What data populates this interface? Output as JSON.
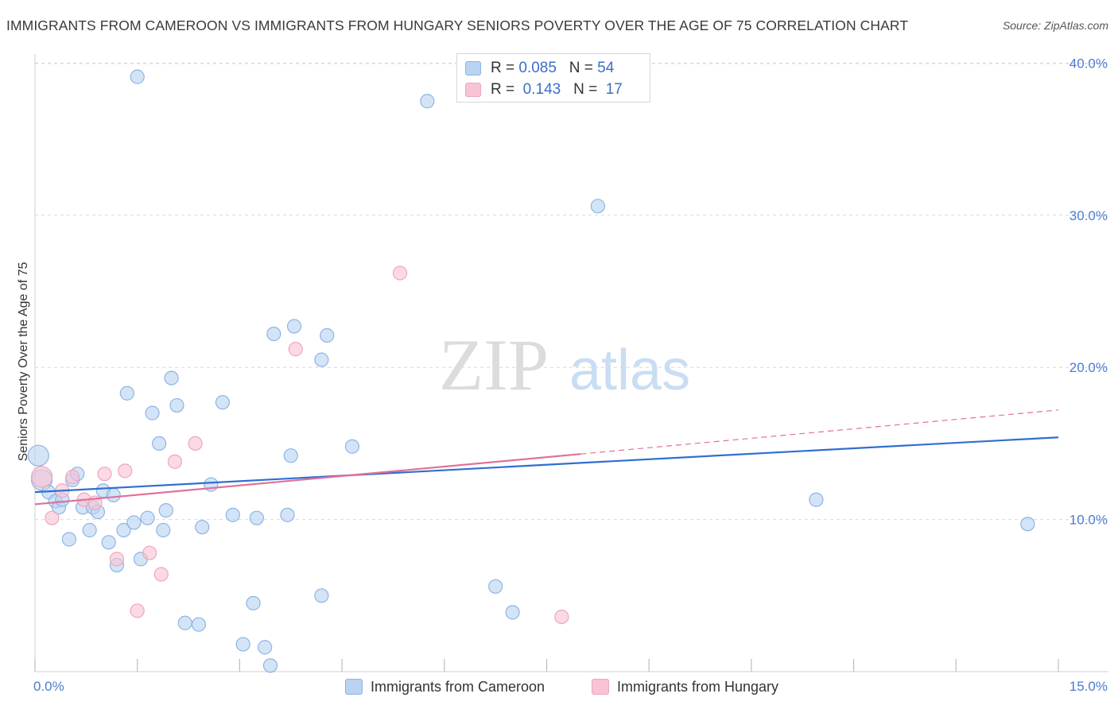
{
  "title": "IMMIGRANTS FROM CAMEROON VS IMMIGRANTS FROM HUNGARY SENIORS POVERTY OVER THE AGE OF 75 CORRELATION CHART",
  "source": "Source: ZipAtlas.com",
  "watermark": {
    "zip": "ZIP",
    "atlas": "atlas"
  },
  "legend": {
    "series1": {
      "r_label": "R =",
      "r_value": "0.085",
      "n_label": "N =",
      "n_value": "54"
    },
    "series2": {
      "r_label": "R =",
      "r_value": "0.143",
      "n_label": "N =",
      "n_value": "17"
    }
  },
  "colors": {
    "blue_fill": "#b9d3f2",
    "blue_stroke": "#8db4e6",
    "blue_line": "#2f6fd0",
    "pink_fill": "#f8c3d3",
    "pink_stroke": "#eea6bd",
    "pink_line": "#e0709a",
    "grid": "#d9d9d9",
    "axis_label": "#4a7ccf"
  },
  "chart_data": {
    "type": "scatter",
    "title": "IMMIGRANTS FROM CAMEROON VS IMMIGRANTS FROM HUNGARY SENIORS POVERTY OVER THE AGE OF 75 CORRELATION CHART",
    "xlabel": "",
    "ylabel": "Seniors Poverty Over the Age of 75",
    "xlim": [
      0,
      15
    ],
    "ylim": [
      0,
      40.8
    ],
    "x_tick_labels": [
      "0.0%",
      "15.0%"
    ],
    "y_ticks": [
      10,
      20,
      30,
      40
    ],
    "y_tick_labels": [
      "10.0%",
      "20.0%",
      "30.0%",
      "40.0%"
    ],
    "grid": true,
    "legend_position": "top-center",
    "series": [
      {
        "name": "Immigrants from Cameroon",
        "color": "blue",
        "trend": {
          "x0": 0,
          "y0": 11.8,
          "x1": 15,
          "y1": 15.4,
          "dashed_from": null
        },
        "points": [
          {
            "x": 0.05,
            "y": 14.2,
            "big": true
          },
          {
            "x": 0.1,
            "y": 12.6,
            "big": true
          },
          {
            "x": 0.2,
            "y": 11.8
          },
          {
            "x": 0.3,
            "y": 11.2
          },
          {
            "x": 0.35,
            "y": 10.8
          },
          {
            "x": 0.4,
            "y": 11.3
          },
          {
            "x": 0.5,
            "y": 8.7
          },
          {
            "x": 0.55,
            "y": 12.6
          },
          {
            "x": 0.62,
            "y": 13.0
          },
          {
            "x": 0.7,
            "y": 10.8
          },
          {
            "x": 0.8,
            "y": 9.3
          },
          {
            "x": 0.85,
            "y": 10.8
          },
          {
            "x": 0.92,
            "y": 10.5
          },
          {
            "x": 1.0,
            "y": 11.9
          },
          {
            "x": 1.08,
            "y": 8.5
          },
          {
            "x": 1.15,
            "y": 11.6
          },
          {
            "x": 1.2,
            "y": 7.0
          },
          {
            "x": 1.3,
            "y": 9.3
          },
          {
            "x": 1.35,
            "y": 18.3
          },
          {
            "x": 1.5,
            "y": 39.1
          },
          {
            "x": 1.45,
            "y": 9.8
          },
          {
            "x": 1.55,
            "y": 7.4
          },
          {
            "x": 1.65,
            "y": 10.1
          },
          {
            "x": 1.72,
            "y": 17.0
          },
          {
            "x": 1.82,
            "y": 15.0
          },
          {
            "x": 1.88,
            "y": 9.3
          },
          {
            "x": 1.92,
            "y": 10.6
          },
          {
            "x": 2.0,
            "y": 19.3
          },
          {
            "x": 2.08,
            "y": 17.5
          },
          {
            "x": 2.2,
            "y": 3.2
          },
          {
            "x": 2.4,
            "y": 3.1
          },
          {
            "x": 2.45,
            "y": 9.5
          },
          {
            "x": 2.58,
            "y": 12.3
          },
          {
            "x": 2.75,
            "y": 17.7
          },
          {
            "x": 2.9,
            "y": 10.3
          },
          {
            "x": 3.05,
            "y": 1.8
          },
          {
            "x": 3.2,
            "y": 4.5
          },
          {
            "x": 3.25,
            "y": 10.1
          },
          {
            "x": 3.37,
            "y": 1.6
          },
          {
            "x": 3.45,
            "y": 0.4
          },
          {
            "x": 3.5,
            "y": 22.2
          },
          {
            "x": 3.7,
            "y": 10.3
          },
          {
            "x": 3.75,
            "y": 14.2
          },
          {
            "x": 3.8,
            "y": 22.7
          },
          {
            "x": 4.2,
            "y": 20.5
          },
          {
            "x": 4.28,
            "y": 22.1
          },
          {
            "x": 4.2,
            "y": 5.0
          },
          {
            "x": 4.65,
            "y": 14.8
          },
          {
            "x": 5.75,
            "y": 37.5
          },
          {
            "x": 6.75,
            "y": 5.6
          },
          {
            "x": 7.0,
            "y": 3.9
          },
          {
            "x": 8.25,
            "y": 30.6
          },
          {
            "x": 11.45,
            "y": 11.3
          },
          {
            "x": 14.55,
            "y": 9.7
          }
        ]
      },
      {
        "name": "Immigrants from Hungary",
        "color": "pink",
        "trend": {
          "x0": 0,
          "y0": 11.0,
          "x1": 15,
          "y1": 17.2,
          "dashed_from": 8.0
        },
        "points": [
          {
            "x": 0.1,
            "y": 12.8,
            "big": true
          },
          {
            "x": 0.25,
            "y": 10.1
          },
          {
            "x": 0.4,
            "y": 11.9
          },
          {
            "x": 0.55,
            "y": 12.8
          },
          {
            "x": 0.72,
            "y": 11.3
          },
          {
            "x": 0.88,
            "y": 11.1
          },
          {
            "x": 1.02,
            "y": 13.0
          },
          {
            "x": 1.2,
            "y": 7.4
          },
          {
            "x": 1.32,
            "y": 13.2
          },
          {
            "x": 1.5,
            "y": 4.0
          },
          {
            "x": 1.68,
            "y": 7.8
          },
          {
            "x": 1.85,
            "y": 6.4
          },
          {
            "x": 2.05,
            "y": 13.8
          },
          {
            "x": 2.35,
            "y": 15.0
          },
          {
            "x": 3.82,
            "y": 21.2
          },
          {
            "x": 5.35,
            "y": 26.2
          },
          {
            "x": 7.72,
            "y": 3.6
          }
        ]
      }
    ]
  }
}
